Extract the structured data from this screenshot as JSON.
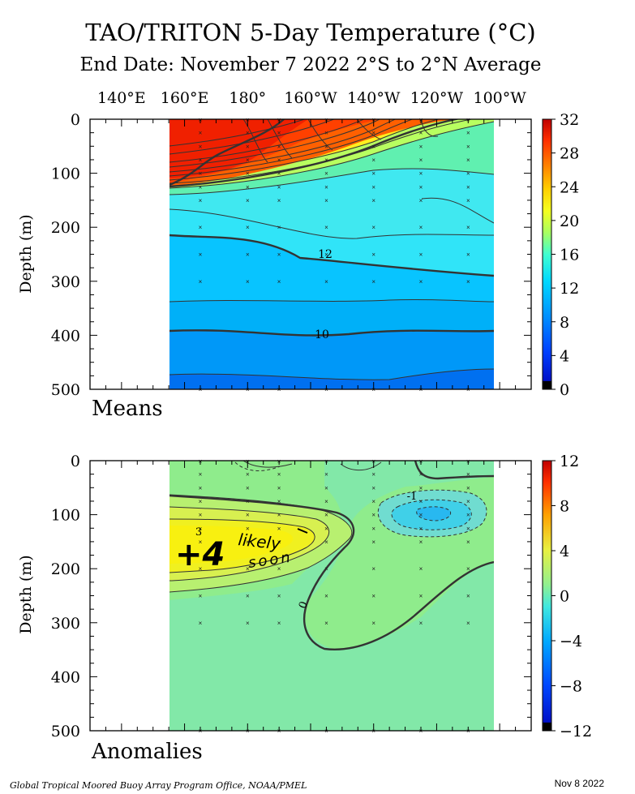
{
  "title": "TAO/TRITON 5-Day Temperature (°C)",
  "subtitle": "End Date: November 7 2022  2°S to 2°N Average",
  "footer": "Global Tropical Moored Buoy Array Program Office, NOAA/PMEL",
  "date_stamp": "Nov  8 2022",
  "annotation": {
    "value": "+4",
    "line1": "likely",
    "line2": "soon"
  },
  "chart_data": [
    {
      "type": "heatmap",
      "panel_label": "Means",
      "ylabel": "Depth (m)",
      "x_ticks": [
        "140°E",
        "160°E",
        "180°",
        "160°W",
        "140°W",
        "120°W",
        "100°W"
      ],
      "x_tick_lon": [
        140,
        160,
        180,
        200,
        220,
        240,
        260
      ],
      "xlim": [
        130,
        270
      ],
      "data_xlim": [
        160,
        265
      ],
      "y_ticks": [
        "0",
        "100",
        "200",
        "300",
        "400",
        "500"
      ],
      "ylim": [
        0,
        500
      ],
      "colorbar_ticks": [
        "32",
        "28",
        "24",
        "20",
        "16",
        "12",
        "8",
        "4",
        "0"
      ],
      "colorbar_range": [
        0,
        32
      ],
      "contour_labels": [
        "12",
        "10"
      ],
      "buoy_lon": [
        165,
        180,
        190,
        205,
        220,
        235,
        250
      ],
      "buoy_depths": [
        1,
        25,
        50,
        75,
        100,
        125,
        150,
        200,
        250,
        300,
        500
      ]
    },
    {
      "type": "heatmap",
      "panel_label": "Anomalies",
      "ylabel": "Depth (m)",
      "x_tick_lon": [
        140,
        160,
        180,
        200,
        220,
        240,
        260
      ],
      "xlim": [
        130,
        270
      ],
      "data_xlim": [
        160,
        265
      ],
      "y_ticks": [
        "0",
        "100",
        "200",
        "300",
        "400",
        "500"
      ],
      "ylim": [
        0,
        500
      ],
      "colorbar_ticks": [
        "12",
        "8",
        "4",
        "0",
        "−4",
        "−8",
        "−12"
      ],
      "colorbar_range": [
        -12,
        12
      ],
      "contour_labels": [
        "3",
        "0",
        "-1"
      ],
      "buoy_lon": [
        165,
        180,
        190,
        205,
        220,
        235,
        250
      ],
      "buoy_depths": [
        1,
        25,
        50,
        75,
        100,
        125,
        150,
        200,
        250,
        300,
        500
      ]
    }
  ]
}
